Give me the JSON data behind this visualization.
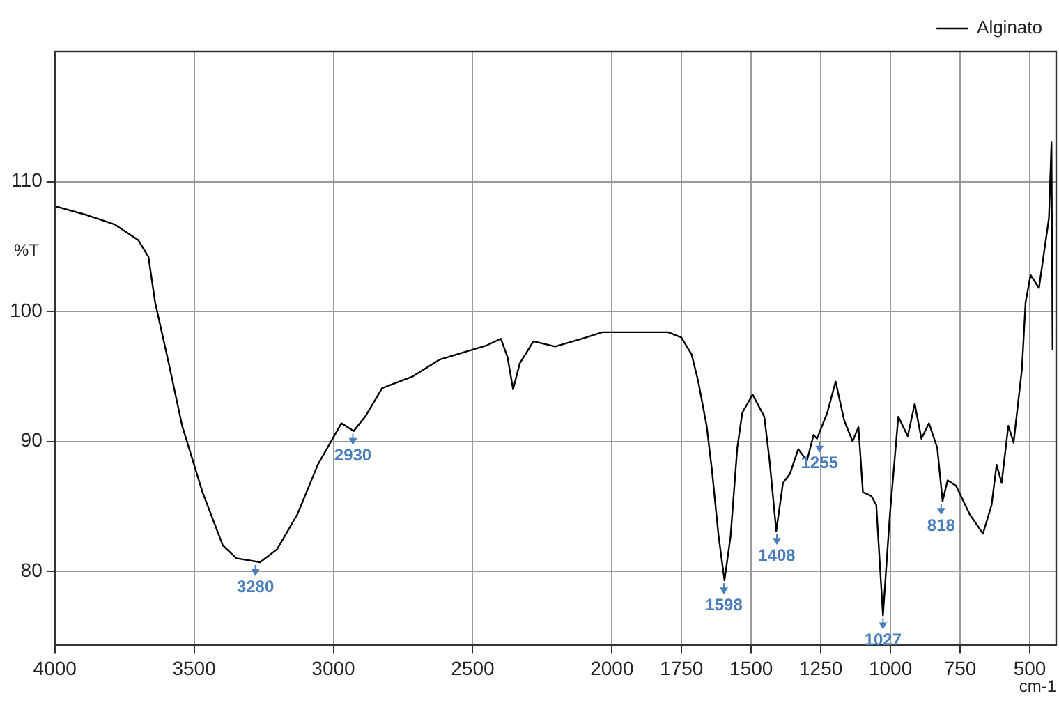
{
  "chart_data": {
    "type": "line",
    "xlabel": "cm-1",
    "ylabel": "%T",
    "xlim": [
      4000,
      405
    ],
    "ylim": [
      74.3,
      120
    ],
    "xticks": [
      4000,
      3500,
      3000,
      2500,
      2000,
      1750,
      1500,
      1250,
      1000,
      750,
      500
    ],
    "yticks": [
      80,
      90,
      100,
      110
    ],
    "grid": true,
    "legend": "top right",
    "marker": "none",
    "line_style": "solid",
    "series": [
      {
        "name": "Alginato",
        "color": "#000000",
        "x": [
          4000,
          3883,
          3786,
          3701,
          3664,
          3640,
          3591,
          3543,
          3470,
          3397,
          3348,
          3263,
          3202,
          3129,
          3056,
          2971,
          2927,
          2886,
          2825,
          2715,
          2618,
          2448,
          2399,
          2375,
          2355,
          2331,
          2282,
          2204,
          2107,
          2034,
          1909,
          1799,
          1751,
          1714,
          1690,
          1660,
          1641,
          1617,
          1596,
          1574,
          1550,
          1532,
          1495,
          1453,
          1434,
          1410,
          1386,
          1361,
          1331,
          1300,
          1276,
          1264,
          1227,
          1197,
          1166,
          1136,
          1115,
          1099,
          1069,
          1051,
          1027,
          1002,
          972,
          938,
          913,
          889,
          862,
          832,
          813,
          795,
          765,
          716,
          668,
          637,
          619,
          601,
          577,
          558,
          528,
          515,
          497,
          467,
          449,
          431,
          422,
          418
        ],
        "values": [
          108.1,
          107.4,
          106.7,
          105.5,
          104.2,
          100.7,
          96.0,
          91.2,
          86.1,
          82.0,
          81.0,
          80.7,
          81.7,
          84.4,
          88.2,
          91.4,
          90.8,
          91.9,
          94.1,
          95.0,
          96.3,
          97.4,
          97.9,
          96.5,
          94.0,
          96.0,
          97.7,
          97.3,
          97.9,
          98.4,
          98.4,
          98.4,
          98.0,
          96.7,
          94.6,
          91.2,
          87.8,
          82.7,
          79.3,
          82.7,
          89.5,
          92.2,
          93.6,
          91.9,
          88.5,
          83.1,
          86.8,
          87.5,
          89.4,
          88.5,
          90.5,
          90.2,
          92.2,
          94.6,
          91.6,
          90.0,
          91.1,
          86.1,
          85.8,
          85.1,
          76.6,
          84.4,
          91.9,
          90.4,
          92.9,
          90.2,
          91.4,
          89.5,
          85.4,
          87.0,
          86.6,
          84.4,
          82.9,
          85.1,
          88.2,
          86.8,
          91.2,
          89.9,
          95.6,
          100.7,
          102.8,
          101.8,
          104.5,
          107.2,
          113.0,
          97.0
        ]
      }
    ],
    "annotations": [
      {
        "text": "3280",
        "x": 3280,
        "y": 80.7
      },
      {
        "text": "2930",
        "x": 2930,
        "y": 90.8
      },
      {
        "text": "1598",
        "x": 1598,
        "y": 79.3
      },
      {
        "text": "1408",
        "x": 1408,
        "y": 83.1
      },
      {
        "text": "1255",
        "x": 1255,
        "y": 90.2
      },
      {
        "text": "1027",
        "x": 1027,
        "y": 76.6
      },
      {
        "text": "818",
        "x": 818,
        "y": 85.4
      }
    ]
  }
}
